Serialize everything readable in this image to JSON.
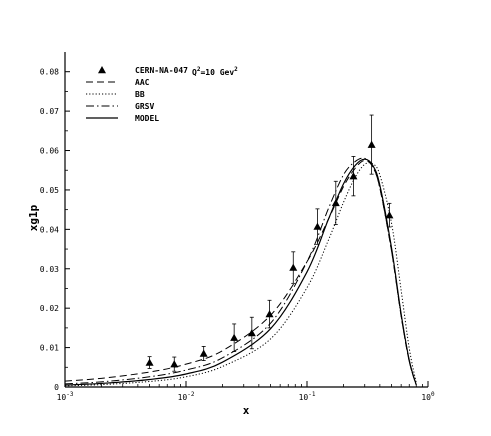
{
  "chart_data": {
    "type": "line",
    "title": "",
    "xlabel": "x",
    "ylabel": "xg1p",
    "x_scale": "log",
    "xlim": [
      0.001,
      1
    ],
    "ylim": [
      0,
      0.085
    ],
    "grid": false,
    "legend_position": "top-left",
    "x_ticks": [
      {
        "value": 0.001,
        "base": "10",
        "exp": "-3"
      },
      {
        "value": 0.01,
        "base": "10",
        "exp": "-2"
      },
      {
        "value": 0.1,
        "base": "10",
        "exp": "-1"
      },
      {
        "value": 1,
        "base": "10",
        "exp": "0"
      }
    ],
    "y_ticks": [
      {
        "value": 0,
        "label": "0"
      },
      {
        "value": 0.01,
        "label": "0.01"
      },
      {
        "value": 0.02,
        "label": "0.02"
      },
      {
        "value": 0.03,
        "label": "0.03"
      },
      {
        "value": 0.04,
        "label": "0.04"
      },
      {
        "value": 0.05,
        "label": "0.05"
      },
      {
        "value": 0.06,
        "label": "0.06"
      },
      {
        "value": 0.07,
        "label": "0.07"
      },
      {
        "value": 0.08,
        "label": "0.08"
      }
    ],
    "legend_annotation": {
      "q": "Q",
      "q_sup": "2",
      "mid": "=10 Gev",
      "unit_sup": "2"
    },
    "points": {
      "name": "CERN-NA-047",
      "x": [
        0.005,
        0.008,
        0.014,
        0.025,
        0.035,
        0.049,
        0.077,
        0.122,
        0.173,
        0.242,
        0.342,
        0.48
      ],
      "y": [
        0.0062,
        0.0058,
        0.0085,
        0.0125,
        0.0137,
        0.0185,
        0.0303,
        0.0407,
        0.0467,
        0.0535,
        0.0615,
        0.0436
      ],
      "err": [
        0.0015,
        0.0018,
        0.0018,
        0.0035,
        0.004,
        0.0035,
        0.004,
        0.0045,
        0.0055,
        0.005,
        0.0075,
        0.003
      ]
    },
    "series": [
      {
        "name": "AAC",
        "dash": "dashed",
        "x": [
          0.001,
          0.002,
          0.005,
          0.01,
          0.02,
          0.05,
          0.1,
          0.15,
          0.2,
          0.25,
          0.3,
          0.35,
          0.4,
          0.5,
          0.6,
          0.7,
          0.8
        ],
        "y": [
          0.0015,
          0.0022,
          0.0038,
          0.0058,
          0.0092,
          0.0182,
          0.0318,
          0.0425,
          0.0508,
          0.0555,
          0.0575,
          0.0558,
          0.0505,
          0.0345,
          0.018,
          0.0065,
          0.0005
        ]
      },
      {
        "name": "BB",
        "dash": "dotted",
        "x": [
          0.001,
          0.002,
          0.005,
          0.01,
          0.02,
          0.05,
          0.1,
          0.15,
          0.2,
          0.25,
          0.3,
          0.35,
          0.4,
          0.5,
          0.6,
          0.7,
          0.8
        ],
        "y": [
          0.0003,
          0.0006,
          0.0014,
          0.0026,
          0.0052,
          0.0122,
          0.0252,
          0.0372,
          0.0468,
          0.0532,
          0.0565,
          0.0566,
          0.0538,
          0.0415,
          0.0245,
          0.0098,
          0.001
        ]
      },
      {
        "name": "GRSV",
        "dash": "dashdot",
        "x": [
          0.001,
          0.002,
          0.005,
          0.01,
          0.02,
          0.05,
          0.1,
          0.15,
          0.2,
          0.25,
          0.3,
          0.35,
          0.4,
          0.5,
          0.6,
          0.7,
          0.8
        ],
        "y": [
          0.0008,
          0.0013,
          0.0026,
          0.0043,
          0.0074,
          0.0162,
          0.0318,
          0.0452,
          0.0538,
          0.0572,
          0.058,
          0.0558,
          0.0505,
          0.0345,
          0.018,
          0.0065,
          0.0005
        ]
      },
      {
        "name": "MODEL",
        "dash": "solid",
        "x": [
          0.001,
          0.002,
          0.005,
          0.01,
          0.02,
          0.05,
          0.1,
          0.15,
          0.2,
          0.25,
          0.3,
          0.35,
          0.4,
          0.5,
          0.6,
          0.7,
          0.8
        ],
        "y": [
          0.0005,
          0.0009,
          0.0019,
          0.0033,
          0.0063,
          0.0148,
          0.0292,
          0.0425,
          0.0515,
          0.0562,
          0.0578,
          0.0562,
          0.0512,
          0.0352,
          0.0185,
          0.0068,
          0.0005
        ]
      }
    ]
  }
}
